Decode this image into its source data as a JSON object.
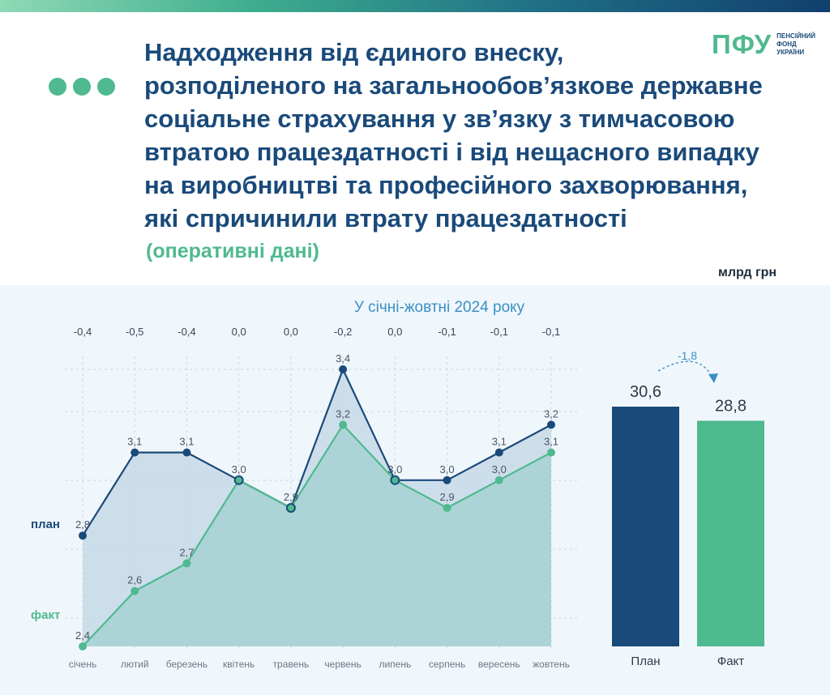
{
  "header": {
    "title_lines": [
      "Надходження від єдиного внеску,",
      "розподіленого на загальнообов’язкове державне",
      "соціальне страхування у зв’язку з тимчасовою",
      "втратою працездатності і від нещасного випадку",
      "на виробництві та професійного захворювання,",
      "які спричинили втрату працездатності"
    ],
    "subtitle": "(оперативні дані)",
    "unit": "млрд грн"
  },
  "logo": {
    "mark": "ПФУ",
    "lines": [
      "ПЕНСІЙНИЙ",
      "ФОНД",
      "УКРАЇНИ"
    ]
  },
  "colors": {
    "plan": "#1a4a7a",
    "fact": "#4fb98f",
    "diff": "#3a8fc4",
    "plan_area": "#c7d9e8",
    "fact_area": "#a8d1d4"
  },
  "chart_data": [
    {
      "type": "line",
      "title": "У січні-жовтні 2024 року",
      "categories": [
        "січень",
        "лютий",
        "березень",
        "квітень",
        "травень",
        "червень",
        "липень",
        "серпень",
        "вересень",
        "жовтень"
      ],
      "series": [
        {
          "name": "план",
          "values": [
            2.8,
            3.1,
            3.1,
            3.0,
            2.9,
            3.4,
            3.0,
            3.0,
            3.1,
            3.2
          ],
          "labels": [
            "2,8",
            "3,1",
            "3,1",
            "3,0",
            "2,9",
            "3,4",
            "3,0",
            "3,0",
            "3,1",
            "3,2"
          ]
        },
        {
          "name": "факт",
          "values": [
            2.4,
            2.6,
            2.7,
            3.0,
            2.9,
            3.2,
            3.0,
            2.9,
            3.0,
            3.1
          ],
          "labels": [
            "2,4",
            "2,6",
            "2,7",
            "3,0",
            "2,9",
            "3,2",
            "3,0",
            "2,9",
            "3,0",
            "3,1"
          ]
        }
      ],
      "differences": [
        -0.4,
        -0.5,
        -0.4,
        0.0,
        0.0,
        -0.2,
        0.0,
        -0.1,
        -0.1,
        -0.1
      ],
      "difference_labels": [
        "-0,4",
        "-0,5",
        "-0,4",
        "0,0",
        "0,0",
        "-0,2",
        "0,0",
        "-0,1",
        "-0,1",
        "-0,1"
      ],
      "ylim": [
        2.4,
        3.4
      ],
      "grid": true
    },
    {
      "type": "bar",
      "categories": [
        "План",
        "Факт"
      ],
      "values": [
        30.6,
        28.8
      ],
      "labels": [
        "30,6",
        "28,8"
      ],
      "difference": -1.8,
      "difference_label": "-1,8"
    }
  ]
}
